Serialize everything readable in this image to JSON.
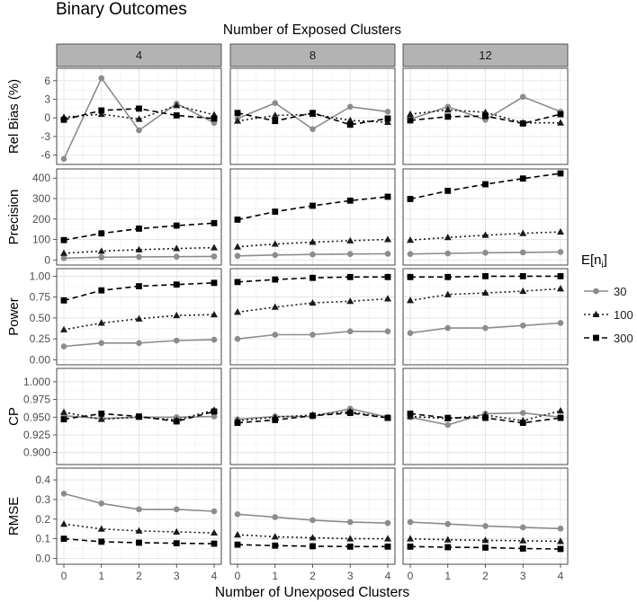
{
  "figure": {
    "title": "Binary Outcomes"
  },
  "chart_data": {
    "type": "line",
    "title": "Binary Outcomes",
    "facet_col_title": "Number of Exposed Clusters",
    "xlabel": "Number of Unexposed Clusters",
    "x": [
      0,
      1,
      2,
      3,
      4
    ],
    "x_ticks": [
      "0",
      "1",
      "2",
      "3",
      "4"
    ],
    "columns": [
      "4",
      "8",
      "12"
    ],
    "legend": {
      "title": "E[n",
      "title_sub": "i",
      "title_end": "]",
      "position": "right",
      "entries": [
        {
          "label": "30",
          "color": "#8c8c8c",
          "marker": "circle",
          "dash": "solid"
        },
        {
          "label": "100",
          "color": "#1a1a1a",
          "marker": "triangle",
          "dash": "dotted"
        },
        {
          "label": "300",
          "color": "#000000",
          "marker": "square",
          "dash": "dashed"
        }
      ]
    },
    "rows": [
      {
        "ylabel": "Rel Bias (%)",
        "ylim": [
          -7.5,
          8
        ],
        "yticks": [
          -6,
          -3,
          0,
          3,
          6
        ],
        "ytick_labels": [
          "-6",
          "-3",
          "0",
          "3",
          "6"
        ],
        "panels": [
          {
            "series": [
              {
                "name": "30",
                "values": [
                  -6.6,
                  6.4,
                  -2.0,
                  2.3,
                  -0.8
                ]
              },
              {
                "name": "100",
                "values": [
                  0.1,
                  0.6,
                  -0.2,
                  2.0,
                  0.5
                ]
              },
              {
                "name": "300",
                "values": [
                  -0.3,
                  1.2,
                  1.5,
                  0.4,
                  -0.1
                ]
              }
            ]
          },
          {
            "series": [
              {
                "name": "30",
                "values": [
                  -0.1,
                  2.4,
                  -1.8,
                  1.8,
                  1.0
                ]
              },
              {
                "name": "100",
                "values": [
                  -0.5,
                  0.4,
                  0.6,
                  -0.4,
                  -0.7
                ]
              },
              {
                "name": "300",
                "values": [
                  0.8,
                  -0.5,
                  0.8,
                  -1.1,
                  -0.1
                ]
              }
            ]
          },
          {
            "series": [
              {
                "name": "30",
                "values": [
                  -0.2,
                  1.8,
                  -0.3,
                  3.4,
                  1.0
                ]
              },
              {
                "name": "100",
                "values": [
                  0.6,
                  1.3,
                  0.9,
                  -0.8,
                  -0.8
                ]
              },
              {
                "name": "300",
                "values": [
                  -0.4,
                  0.2,
                  0.3,
                  -0.9,
                  0.6
                ]
              }
            ]
          }
        ]
      },
      {
        "ylabel": "Precision",
        "ylim": [
          -25,
          445
        ],
        "yticks": [
          0,
          100,
          200,
          300,
          400
        ],
        "ytick_labels": [
          "0",
          "100",
          "200",
          "300",
          "400"
        ],
        "panels": [
          {
            "series": [
              {
                "name": "30",
                "values": [
                  9,
                  13,
                  15,
                  16,
                  17
                ]
              },
              {
                "name": "100",
                "values": [
                  33,
                  43,
                  50,
                  56,
                  60
                ]
              },
              {
                "name": "300",
                "values": [
                  97,
                  130,
                  153,
                  168,
                  180
                ]
              }
            ]
          },
          {
            "series": [
              {
                "name": "30",
                "values": [
                  20,
                  24,
                  27,
                  29,
                  30
                ]
              },
              {
                "name": "100",
                "values": [
                  64,
                  78,
                  87,
                  94,
                  100
                ]
              },
              {
                "name": "300",
                "values": [
                  197,
                  236,
                  265,
                  290,
                  309
                ]
              }
            ]
          },
          {
            "series": [
              {
                "name": "30",
                "values": [
                  29,
                  32,
                  35,
                  37,
                  39
                ]
              },
              {
                "name": "100",
                "values": [
                  97,
                  110,
                  121,
                  130,
                  137
                ]
              },
              {
                "name": "300",
                "values": [
                  298,
                  338,
                  370,
                  398,
                  423
                ]
              }
            ]
          }
        ]
      },
      {
        "ylabel": "Power",
        "ylim": [
          -0.06,
          1.09
        ],
        "yticks": [
          0,
          0.25,
          0.5,
          0.75,
          1.0
        ],
        "ytick_labels": [
          "0.00",
          "0.25",
          "0.50",
          "0.75",
          "1.00"
        ],
        "panels": [
          {
            "series": [
              {
                "name": "30",
                "values": [
                  0.16,
                  0.2,
                  0.2,
                  0.23,
                  0.24
                ]
              },
              {
                "name": "100",
                "values": [
                  0.36,
                  0.44,
                  0.49,
                  0.53,
                  0.54
                ]
              },
              {
                "name": "300",
                "values": [
                  0.71,
                  0.83,
                  0.88,
                  0.9,
                  0.92
                ]
              }
            ]
          },
          {
            "series": [
              {
                "name": "30",
                "values": [
                  0.25,
                  0.3,
                  0.3,
                  0.34,
                  0.34
                ]
              },
              {
                "name": "100",
                "values": [
                  0.57,
                  0.63,
                  0.68,
                  0.7,
                  0.73
                ]
              },
              {
                "name": "300",
                "values": [
                  0.93,
                  0.96,
                  0.98,
                  0.99,
                  0.99
                ]
              }
            ]
          },
          {
            "series": [
              {
                "name": "30",
                "values": [
                  0.32,
                  0.38,
                  0.38,
                  0.41,
                  0.44
                ]
              },
              {
                "name": "100",
                "values": [
                  0.71,
                  0.78,
                  0.8,
                  0.82,
                  0.85
                ]
              },
              {
                "name": "300",
                "values": [
                  0.99,
                  0.99,
                  1.0,
                  1.0,
                  1.0
                ]
              }
            ]
          }
        ]
      },
      {
        "ylabel": "CP",
        "ylim": [
          0.883,
          1.019
        ],
        "yticks": [
          0.9,
          0.925,
          0.95,
          0.975,
          1.0
        ],
        "ytick_labels": [
          "0.900",
          "0.925",
          "0.950",
          "0.975",
          "1.000"
        ],
        "panels": [
          {
            "series": [
              {
                "name": "30",
                "values": [
                  0.952,
                  0.948,
                  0.95,
                  0.95,
                  0.951
                ]
              },
              {
                "name": "100",
                "values": [
                  0.957,
                  0.947,
                  0.95,
                  0.946,
                  0.96
                ]
              },
              {
                "name": "300",
                "values": [
                  0.947,
                  0.955,
                  0.951,
                  0.944,
                  0.958
                ]
              }
            ]
          },
          {
            "series": [
              {
                "name": "30",
                "values": [
                  0.947,
                  0.951,
                  0.951,
                  0.962,
                  0.95
                ]
              },
              {
                "name": "100",
                "values": [
                  0.945,
                  0.95,
                  0.953,
                  0.958,
                  0.949
                ]
              },
              {
                "name": "300",
                "values": [
                  0.942,
                  0.946,
                  0.952,
                  0.956,
                  0.949
                ]
              }
            ]
          },
          {
            "series": [
              {
                "name": "30",
                "values": [
                  0.95,
                  0.939,
                  0.955,
                  0.956,
                  0.95
                ]
              },
              {
                "name": "100",
                "values": [
                  0.951,
                  0.948,
                  0.953,
                  0.945,
                  0.959
                ]
              },
              {
                "name": "300",
                "values": [
                  0.955,
                  0.949,
                  0.949,
                  0.942,
                  0.949
                ]
              }
            ]
          }
        ]
      },
      {
        "ylabel": "RMSE",
        "ylim": [
          -0.03,
          0.46
        ],
        "yticks": [
          0,
          0.1,
          0.2,
          0.3,
          0.4
        ],
        "ytick_labels": [
          "0.0",
          "0.1",
          "0.2",
          "0.3",
          "0.4"
        ],
        "panels": [
          {
            "series": [
              {
                "name": "30",
                "values": [
                  0.33,
                  0.28,
                  0.25,
                  0.25,
                  0.24
                ]
              },
              {
                "name": "100",
                "values": [
                  0.175,
                  0.15,
                  0.14,
                  0.135,
                  0.13
                ]
              },
              {
                "name": "300",
                "values": [
                  0.1,
                  0.085,
                  0.08,
                  0.077,
                  0.075
                ]
              }
            ]
          },
          {
            "series": [
              {
                "name": "30",
                "values": [
                  0.225,
                  0.21,
                  0.195,
                  0.185,
                  0.18
                ]
              },
              {
                "name": "100",
                "values": [
                  0.12,
                  0.11,
                  0.105,
                  0.1,
                  0.1
                ]
              },
              {
                "name": "300",
                "values": [
                  0.07,
                  0.065,
                  0.062,
                  0.06,
                  0.06
                ]
              }
            ]
          },
          {
            "series": [
              {
                "name": "30",
                "values": [
                  0.185,
                  0.175,
                  0.165,
                  0.158,
                  0.152
                ]
              },
              {
                "name": "100",
                "values": [
                  0.1,
                  0.095,
                  0.092,
                  0.09,
                  0.087
                ]
              },
              {
                "name": "300",
                "values": [
                  0.06,
                  0.057,
                  0.055,
                  0.05,
                  0.048
                ]
              }
            ]
          }
        ]
      }
    ]
  }
}
